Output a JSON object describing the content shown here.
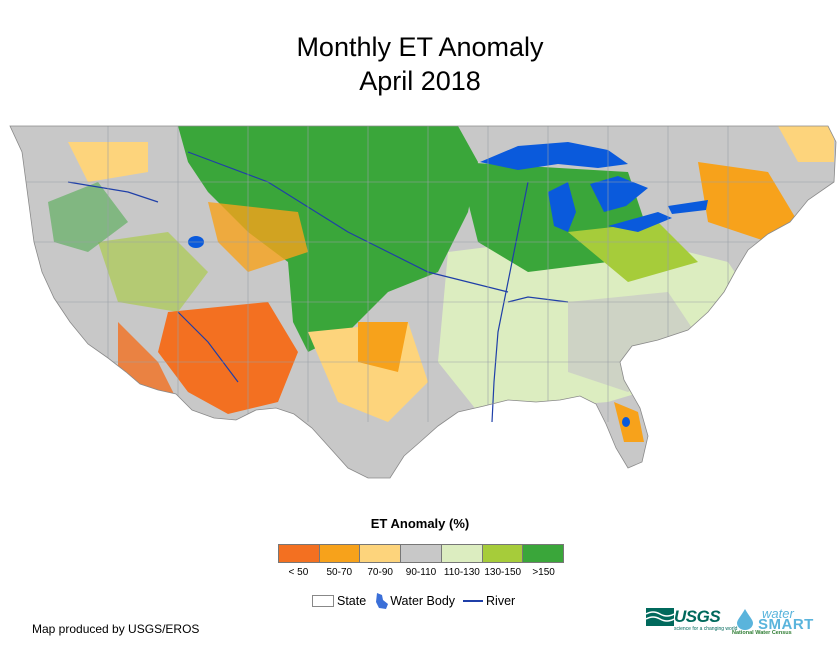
{
  "title": {
    "line1": "Monthly ET Anomaly",
    "line2": "April 2018"
  },
  "legend": {
    "title": "ET Anomaly (%)",
    "classes": [
      {
        "label": "< 50",
        "color": "#f37021"
      },
      {
        "label": "50-70",
        "color": "#f7a21b"
      },
      {
        "label": "70-90",
        "color": "#fdd47c"
      },
      {
        "label": "90-110",
        "color": "#c8c8c8"
      },
      {
        "label": "110-130",
        "color": "#dcedc0"
      },
      {
        "label": "130-150",
        "color": "#a6cc3a"
      },
      {
        "label": ">150",
        "color": "#3aa63a"
      }
    ],
    "symbols": {
      "state": "State",
      "water_body": "Water Body",
      "river": "River"
    }
  },
  "colors": {
    "water": "#0a5adc",
    "river": "#1f3fa8",
    "state_line": "#9aa0a6"
  },
  "credit": "Map produced by USGS/EROS",
  "logos": {
    "usgs": {
      "name": "USGS",
      "tagline": "science for a changing world"
    },
    "watersmart": {
      "word1": "water",
      "word2": "SMART",
      "subtitle": "National Water Census"
    }
  }
}
